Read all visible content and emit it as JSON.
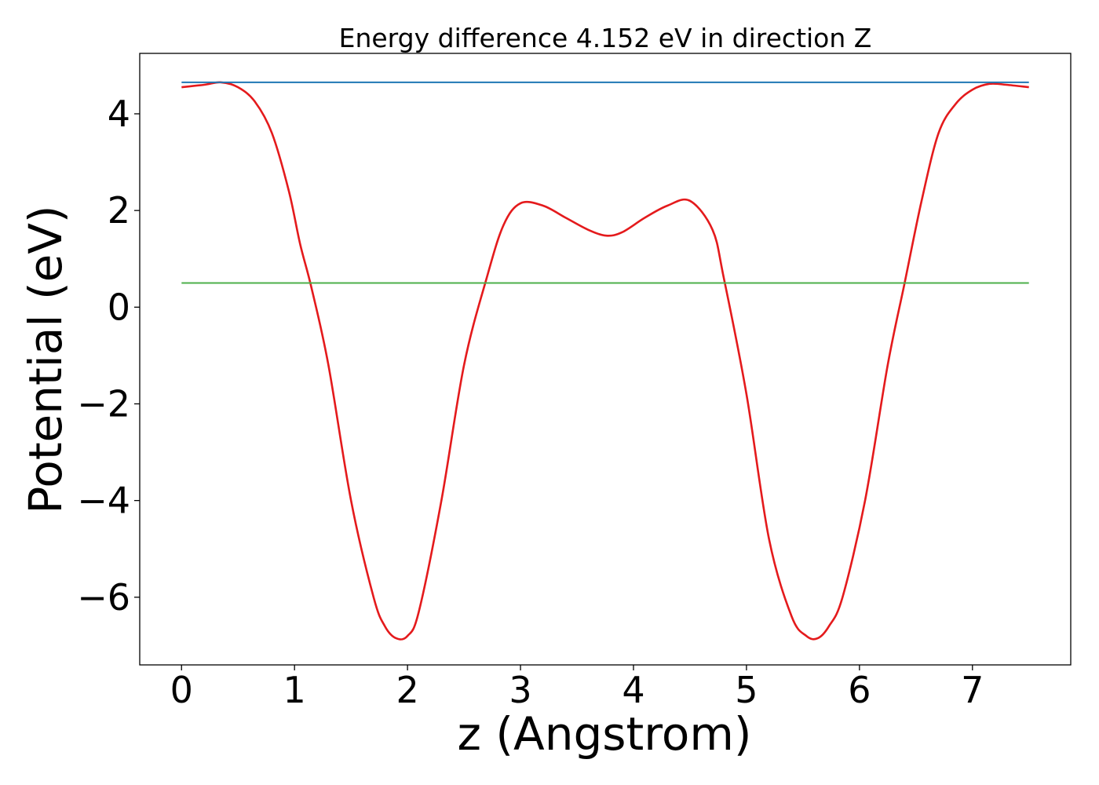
{
  "chart_data": {
    "type": "line",
    "title": "Energy difference 4.152 eV in direction Z",
    "xlabel": "z (Angstrom)",
    "ylabel": "Potential (eV)",
    "xlim": [
      -0.37,
      7.87
    ],
    "ylim": [
      -7.4,
      5.25
    ],
    "xticks": [
      0,
      1,
      2,
      3,
      4,
      5,
      6,
      7
    ],
    "yticks": [
      -6,
      -4,
      -2,
      0,
      2,
      4
    ],
    "xtick_labels": [
      "0",
      "1",
      "2",
      "3",
      "4",
      "5",
      "6",
      "7"
    ],
    "ytick_labels": [
      "−6",
      "−4",
      "−2",
      "0",
      "2",
      "4"
    ],
    "grid": false,
    "legend": "none",
    "series": [
      {
        "color": "#e41a1c",
        "x": [
          0,
          0.2,
          0.35,
          0.5,
          0.65,
          0.8,
          0.95,
          1.05,
          1.15,
          1.3,
          1.5,
          1.7,
          1.8,
          1.9,
          2.0,
          2.1,
          2.3,
          2.5,
          2.7,
          2.85,
          3.0,
          3.2,
          3.4,
          3.6,
          3.76,
          3.9,
          4.1,
          4.3,
          4.5,
          4.7,
          4.8,
          5.0,
          5.2,
          5.4,
          5.53,
          5.63,
          5.73,
          5.85,
          6.05,
          6.25,
          6.4,
          6.55,
          6.7,
          6.85,
          7.0,
          7.15,
          7.3,
          7.5
        ],
        "y": [
          4.55,
          4.6,
          4.65,
          4.55,
          4.25,
          3.6,
          2.4,
          1.3,
          0.4,
          -1.2,
          -4.0,
          -6.0,
          -6.6,
          -6.85,
          -6.8,
          -6.3,
          -4.0,
          -1.2,
          0.6,
          1.7,
          2.15,
          2.1,
          1.85,
          1.6,
          1.48,
          1.55,
          1.85,
          2.1,
          2.2,
          1.6,
          0.6,
          -1.8,
          -4.8,
          -6.4,
          -6.8,
          -6.85,
          -6.6,
          -6.0,
          -4.0,
          -1.2,
          0.5,
          2.2,
          3.6,
          4.2,
          4.5,
          4.62,
          4.6,
          4.55
        ]
      },
      {
        "color": "#1f77b4",
        "x": [
          0,
          7.5
        ],
        "y": [
          4.65,
          4.65
        ]
      },
      {
        "color": "#4daf4a",
        "x": [
          0,
          7.5
        ],
        "y": [
          0.5,
          0.5
        ]
      }
    ]
  }
}
